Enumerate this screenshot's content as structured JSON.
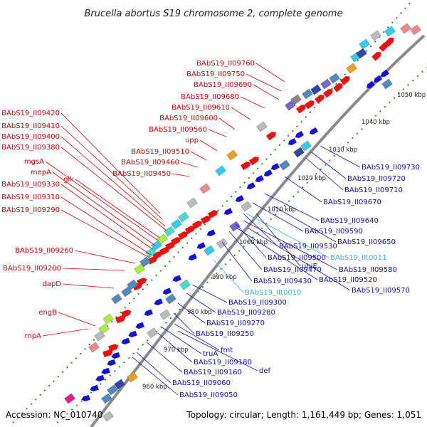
{
  "title": "Brucella abortus S19 chromosome 2, complete genome",
  "accession_label": "Accession: NC_010740",
  "summary_label": "Topology: circular; Length: 1,161,449 bp; Genes: 1,051",
  "ticks": [
    "960 kbp",
    "970 kbp",
    "980 kbp",
    "990 kbp",
    "1000 kbp",
    "1010 kbp",
    "1020 kbp",
    "1030 kbp",
    "1040 kbp",
    "1050 kbp"
  ],
  "labels_left": [
    "BAbS19_II09760",
    "BAbS19_II09750",
    "BAbS19_II09690",
    "BAbS19_II09680",
    "BAbS19_II09610",
    "BAbS19_II09600",
    "BAbS19_II09560",
    "upp",
    "BAbS19_II09510",
    "BAbS19_II09460",
    "BAbS19_II09450",
    "BAbS19_II09420",
    "BAbS19_II09410",
    "BAbS19_II09400",
    "BAbS19_II09380",
    "mgsA",
    "mepA",
    "glk",
    "BAbS19_II09330",
    "BAbS19_II09310",
    "BAbS19_II09290",
    "BAbS19_II09260",
    "BAbS19_II09200",
    "dapD",
    "engB",
    "rnpA"
  ],
  "labels_right": [
    "BAbS19_II09730",
    "BAbS19_II09720",
    "BAbS19_II09710",
    "BAbS19_II09670",
    "BAbS19_II09640",
    "BAbS19_II09590",
    "BAbS19_II09650",
    "BAbS19_II09530",
    "BAbS19_II09500",
    "BAbS19_IIt0011",
    "ubiE",
    "BAbS19_II09580",
    "BAbS19_II09470",
    "BAbS19_II09520",
    "BAbS19_II09430",
    "BAbS19_II09570",
    "BAbS19_IIt0010",
    "BAbS19_II09300",
    "BAbS19_II09280",
    "BAbS19_II09270",
    "BAbS19_II09250",
    "fmt",
    "truA",
    "BAbS19_II09180",
    "def",
    "BAbS19_II09160",
    "BAbS19_II09060",
    "BAbS19_II09050"
  ]
}
